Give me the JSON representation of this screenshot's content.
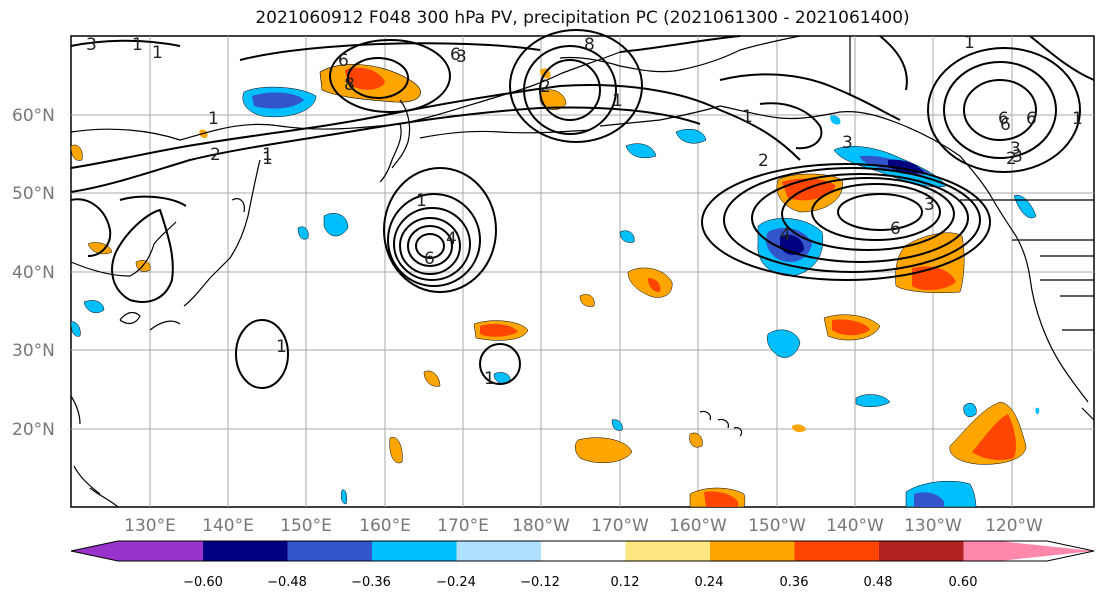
{
  "title": "2021060912 F048 300 hPa PV, precipitation PC (2021061300 - 2021061400)",
  "lat_labels": [
    "60°N",
    "50°N",
    "40°N",
    "30°N",
    "20°N"
  ],
  "lon_labels": [
    "130°E",
    "140°E",
    "150°E",
    "160°E",
    "170°E",
    "180°W",
    "170°W",
    "160°W",
    "150°W",
    "140°W",
    "130°W",
    "120°W"
  ],
  "colorbar": {
    "colors": [
      "#9933cc",
      "#000080",
      "#3355cc",
      "#00bfff",
      "#b0e0ff",
      "#ffffff",
      "#ffe680",
      "#ffa500",
      "#ff4500",
      "#b22222",
      "#ff88aa"
    ],
    "tick_labels": [
      "−0.60",
      "−0.48",
      "−0.36",
      "−0.24",
      "−0.12",
      "0.12",
      "0.24",
      "0.36",
      "0.48",
      "0.60"
    ]
  },
  "pv_contour_labels": [
    "3",
    "1",
    "1",
    "6",
    "6",
    "8",
    "1",
    "1",
    "1",
    "2",
    "1",
    "1",
    "6",
    "6",
    "8",
    "3",
    "6",
    "3",
    "4",
    "2",
    "2",
    "3",
    "1",
    "1",
    "6",
    "2",
    "1",
    "1",
    "3",
    "4",
    "1",
    "3",
    "6"
  ],
  "map_colors": {
    "ocean": "#ffffff",
    "coast": "#000000",
    "grid": "#aaaaaa",
    "pv_contour": "#000000"
  }
}
